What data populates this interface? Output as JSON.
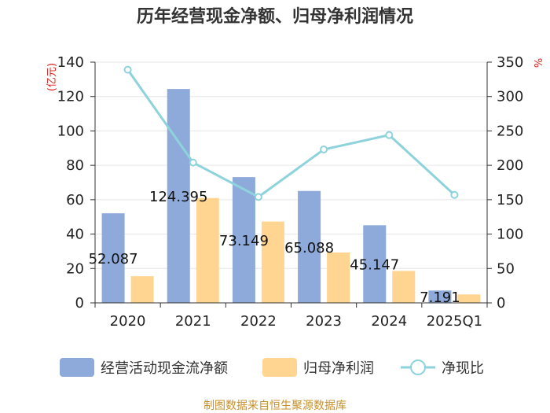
{
  "chart_data": {
    "type": "bar",
    "title": "历年经营现金净额、归母净利润情况",
    "categories": [
      "2020",
      "2021",
      "2022",
      "2023",
      "2024",
      "2025Q1"
    ],
    "series": [
      {
        "name": "经营活动现金流净额",
        "type": "bar",
        "axis": "left",
        "color": "#8eaadb",
        "values": [
          52.087,
          124.395,
          73.149,
          65.088,
          45.147,
          7.191
        ]
      },
      {
        "name": "归母净利润",
        "type": "bar",
        "axis": "left",
        "color": "#ffd591",
        "values": [
          15.5,
          61.0,
          47.3,
          29.3,
          18.6,
          4.9
        ]
      },
      {
        "name": "净现比",
        "type": "line",
        "axis": "right",
        "color": "#8ed3dc",
        "values": [
          339,
          204,
          154,
          223,
          244,
          157
        ]
      }
    ],
    "data_labels": [
      "52.087",
      "124.395",
      "73.149",
      "65.088",
      "45.147",
      "7.191"
    ],
    "ylabel": "(亿元)",
    "y2label": "%",
    "ylim": [
      0,
      140
    ],
    "y2lim": [
      0,
      350
    ],
    "yticks": [
      "0",
      "20",
      "40",
      "60",
      "80",
      "100",
      "120",
      "140"
    ],
    "y2ticks": [
      "0",
      "50",
      "100",
      "150",
      "200",
      "250",
      "300",
      "350"
    ],
    "grid": true,
    "legend_position": "bottom"
  },
  "source_text": "制图数据来自恒生聚源数据库"
}
